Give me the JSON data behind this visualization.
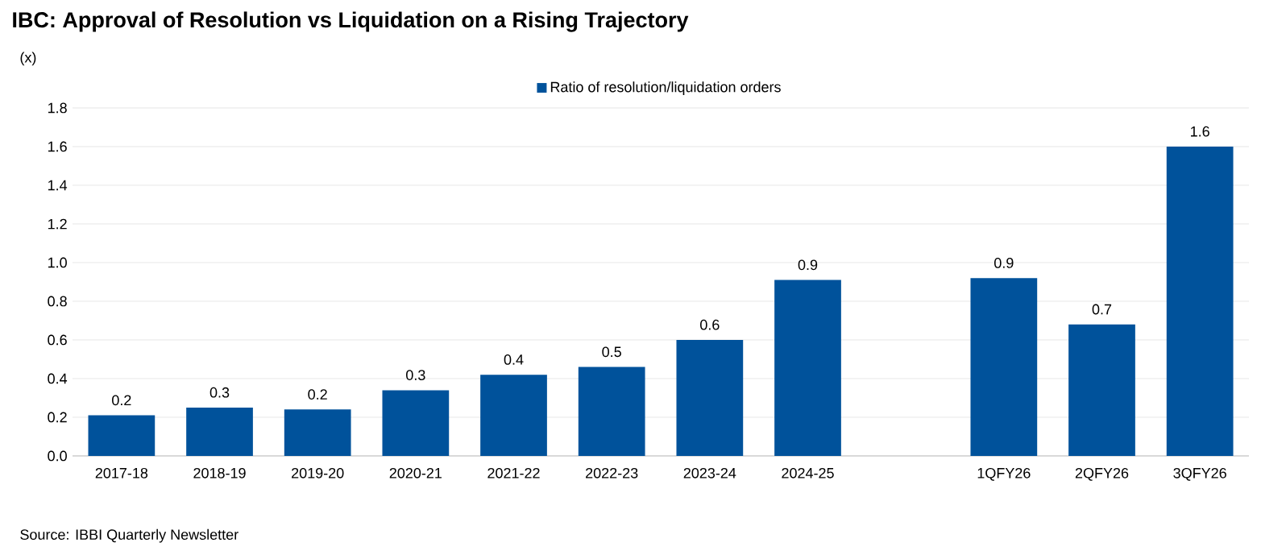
{
  "chart_data": {
    "type": "bar",
    "title": "IBC: Approval of Resolution vs Liquidation on a Rising Trajectory",
    "ylabel": "(x)",
    "categories": [
      "2017-18",
      "2018-19",
      "2019-20",
      "2020-21",
      "2021-22",
      "2022-23",
      "2023-24",
      "2024-25",
      null,
      "1QFY26",
      "2QFY26",
      "3QFY26"
    ],
    "series": [
      {
        "name": "Ratio of resolution/liquidation orders",
        "color": "#00529b",
        "values": [
          0.21,
          0.25,
          0.24,
          0.34,
          0.42,
          0.46,
          0.6,
          0.91,
          null,
          0.92,
          0.68,
          1.6
        ],
        "value_labels": [
          "0.2",
          "0.3",
          "0.2",
          "0.3",
          "0.4",
          "0.5",
          "0.6",
          "0.9",
          null,
          "0.9",
          "0.7",
          "1.6"
        ]
      }
    ],
    "ylim": [
      0,
      1.8
    ],
    "yticks": [
      {
        "value": 0,
        "label": "0.0"
      },
      {
        "value": 0.2,
        "label": "0.2"
      },
      {
        "value": 0.4,
        "label": "0.4"
      },
      {
        "value": 0.6,
        "label": "0.6"
      },
      {
        "value": 0.8,
        "label": "0.8"
      },
      {
        "value": 1.0,
        "label": "1.0"
      },
      {
        "value": 1.2,
        "label": "1.2"
      },
      {
        "value": 1.4,
        "label": "1.4"
      },
      {
        "value": 1.6,
        "label": "1.6"
      },
      {
        "value": 1.8,
        "label": "1.8"
      }
    ],
    "grid": "y",
    "legend": "top",
    "annotations": [
      "Source: IBBI Quarterly Newsletter"
    ]
  }
}
